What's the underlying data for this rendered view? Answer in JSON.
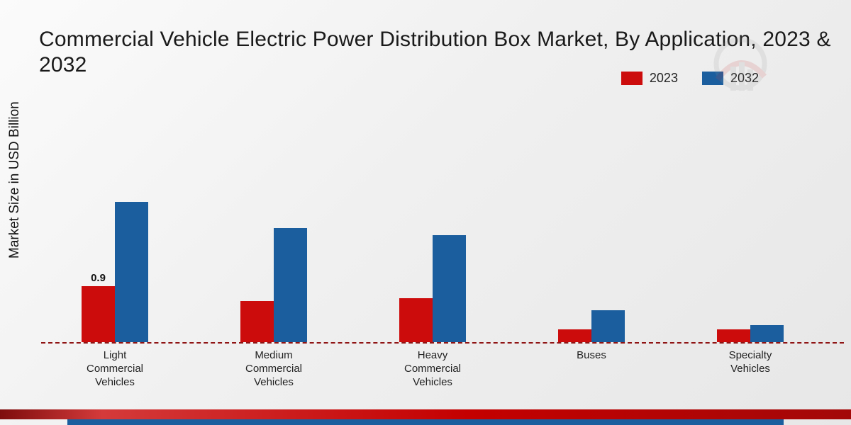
{
  "title": "Commercial Vehicle Electric Power Distribution Box Market, By Application, 2023 & 2032",
  "ylabel": "Market Size in USD Billion",
  "legend": [
    {
      "label": "2023",
      "color": "#cc0c0c"
    },
    {
      "label": "2032",
      "color": "#1b5e9e"
    }
  ],
  "colors": {
    "series_2023": "#cc0c0c",
    "series_2032": "#1b5e9e",
    "baseline": "#8f1414",
    "footer_red": "#c40000",
    "footer_blue": "#1b5e9e"
  },
  "chart_data": {
    "type": "bar",
    "categories": [
      "Light Commercial Vehicles",
      "Medium Commercial Vehicles",
      "Heavy Commercial Vehicles",
      "Buses",
      "Specialty Vehicles"
    ],
    "series": [
      {
        "name": "2023",
        "color": "#cc0c0c",
        "values": [
          0.9,
          0.66,
          0.7,
          0.2,
          0.2
        ],
        "data_labels": [
          "0.9",
          null,
          null,
          null,
          null
        ]
      },
      {
        "name": "2032",
        "color": "#1b5e9e",
        "values": [
          2.25,
          1.83,
          1.72,
          0.51,
          0.27
        ],
        "data_labels": [
          null,
          null,
          null,
          null,
          null
        ]
      }
    ],
    "title": "Commercial Vehicle Electric Power Distribution Box Market, By Application, 2023 & 2032",
    "xlabel": "",
    "ylabel": "Market Size in USD Billion",
    "ylim": [
      0,
      2.5
    ],
    "grid": false,
    "legend_position": "top-right",
    "baseline_style": "dashed"
  }
}
